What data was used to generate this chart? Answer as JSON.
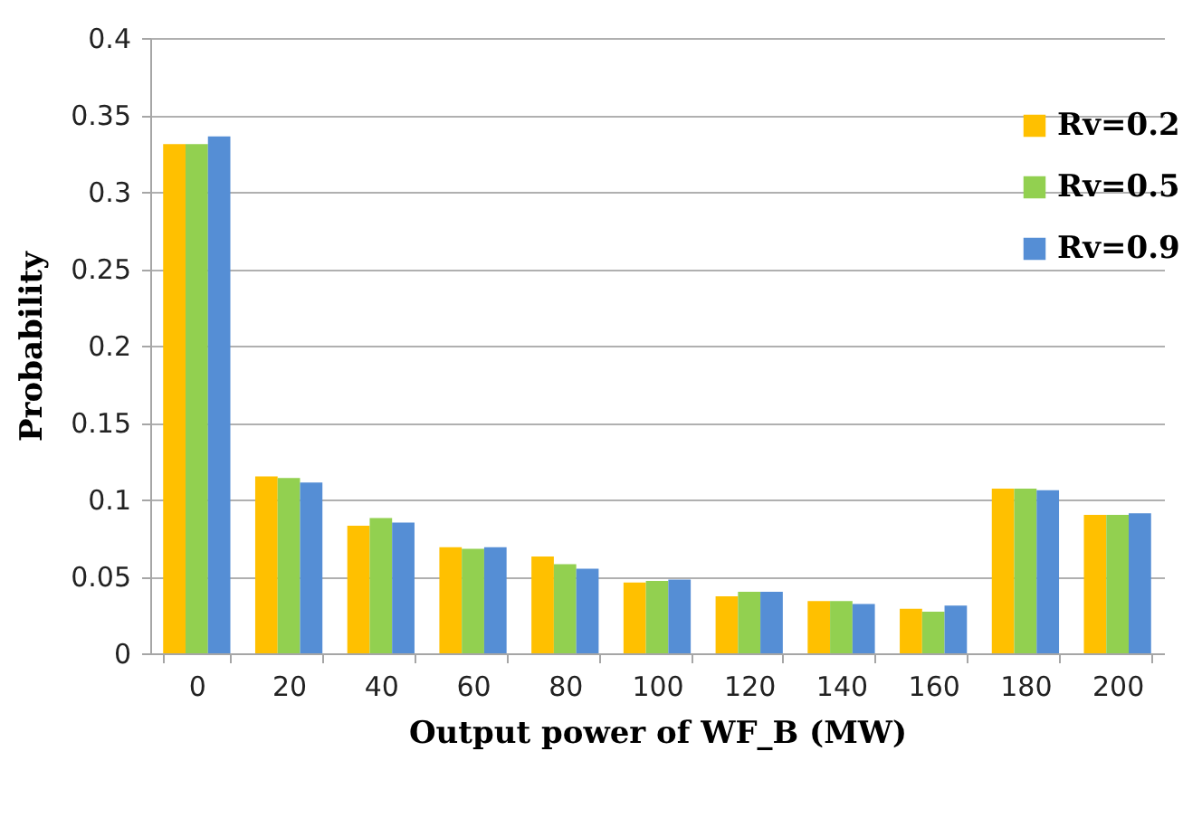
{
  "chart_data": {
    "type": "bar",
    "xlabel": "Output power of WF_B (MW)",
    "ylabel": "Probability",
    "categories": [
      "0",
      "20",
      "40",
      "60",
      "80",
      "100",
      "120",
      "140",
      "160",
      "180",
      "200"
    ],
    "series": [
      {
        "name": "Rv=0.2",
        "color": "#ffc000",
        "values": [
          0.331,
          0.115,
          0.083,
          0.069,
          0.063,
          0.046,
          0.037,
          0.034,
          0.029,
          0.107,
          0.09
        ]
      },
      {
        "name": "Rv=0.5",
        "color": "#92d050",
        "values": [
          0.331,
          0.114,
          0.088,
          0.068,
          0.058,
          0.047,
          0.04,
          0.034,
          0.027,
          0.107,
          0.09
        ]
      },
      {
        "name": "Rv=0.9",
        "color": "#558ed5",
        "values": [
          0.336,
          0.111,
          0.085,
          0.069,
          0.055,
          0.048,
          0.04,
          0.032,
          0.031,
          0.106,
          0.091
        ]
      }
    ],
    "ylim": [
      0,
      0.4
    ],
    "yticks": [
      0,
      0.05,
      0.1,
      0.15,
      0.2,
      0.25,
      0.3,
      0.35,
      0.4
    ],
    "grid": "y",
    "legend": "top right"
  }
}
